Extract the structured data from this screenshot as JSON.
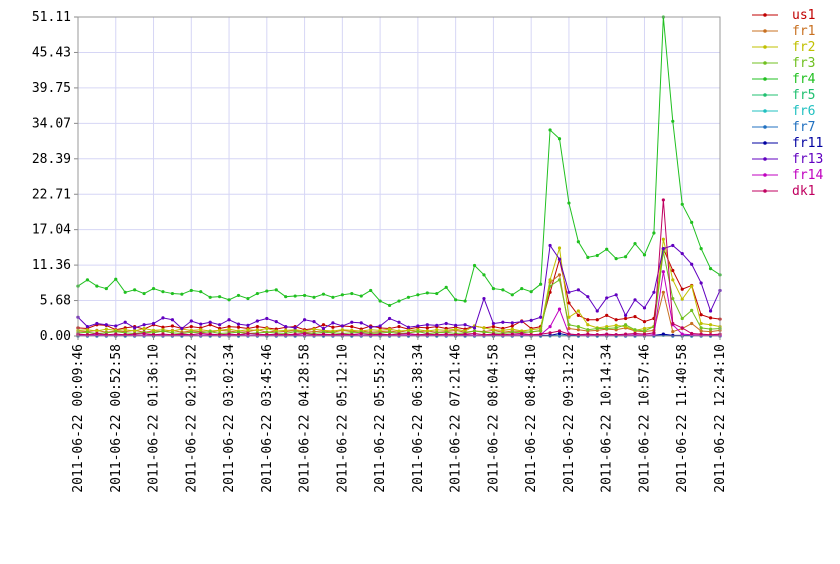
{
  "chart_data": {
    "type": "line",
    "grid": true,
    "legend_position": "right",
    "ylim": [
      0,
      51.11
    ],
    "yticks": [
      {
        "value": 0,
        "label": "0.00"
      },
      5.68,
      11.36,
      17.04,
      22.71,
      28.39,
      34.07,
      39.75,
      45.43,
      51.11
    ],
    "categories": [
      "2011-06-22 00:09:46",
      null,
      null,
      null,
      "2011-06-22 00:52:58",
      null,
      null,
      null,
      "2011-06-22 01:36:10",
      null,
      null,
      null,
      "2011-06-22 02:19:22",
      null,
      null,
      null,
      "2011-06-22 03:02:34",
      null,
      null,
      null,
      "2011-06-22 03:45:46",
      null,
      null,
      null,
      "2011-06-22 04:28:58",
      null,
      null,
      null,
      "2011-06-22 05:12:10",
      null,
      null,
      null,
      "2011-06-22 05:55:22",
      null,
      null,
      null,
      "2011-06-22 06:38:34",
      null,
      null,
      null,
      "2011-06-22 07:21:46",
      null,
      null,
      null,
      "2011-06-22 08:04:58",
      null,
      null,
      null,
      "2011-06-22 08:48:10",
      null,
      null,
      null,
      "2011-06-22 09:31:22",
      null,
      null,
      null,
      "2011-06-22 10:14:34",
      null,
      null,
      null,
      "2011-06-22 10:57:46",
      null,
      null,
      null,
      "2011-06-22 11:40:58",
      null,
      null,
      null,
      "2011-06-22 12:24:10"
    ],
    "series": [
      {
        "name": "us1",
        "color": "#c00000",
        "values": [
          1.3,
          1.2,
          1.8,
          1.7,
          1.0,
          1.3,
          1.5,
          1.1,
          1.8,
          1.4,
          1.6,
          1.2,
          1.5,
          1.3,
          1.8,
          1.2,
          1.5,
          1.4,
          1.2,
          1.5,
          1.3,
          1.1,
          1.4,
          1.5,
          1.0,
          1.2,
          1.8,
          1.4,
          1.6,
          1.5,
          1.1,
          1.6,
          1.3,
          1.2,
          1.5,
          1.1,
          1.4,
          1.3,
          1.5,
          1.2,
          1.4,
          1.1,
          1.6,
          1.3,
          1.5,
          1.2,
          1.6,
          2.4,
          1.2,
          1.5,
          7.0,
          12.3,
          5.3,
          3.3,
          2.6,
          2.6,
          3.3,
          2.6,
          2.8,
          3.1,
          2.3,
          2.8,
          14.0,
          10.5,
          7.5,
          8.1,
          3.4,
          2.9,
          2.7
        ]
      },
      {
        "name": "fr1",
        "color": "#c87020",
        "values": [
          0.8,
          0.7,
          0.9,
          0.6,
          0.8,
          0.7,
          0.9,
          0.6,
          0.8,
          0.7,
          0.9,
          0.6,
          0.8,
          0.7,
          0.6,
          0.9,
          0.8,
          0.6,
          0.7,
          1.0,
          0.6,
          0.8,
          0.7,
          0.9,
          0.6,
          0.7,
          0.8,
          0.6,
          0.9,
          0.7,
          0.8,
          0.6,
          0.7,
          0.8,
          0.6,
          0.9,
          0.7,
          0.8,
          0.6,
          0.7,
          0.9,
          0.6,
          0.8,
          0.7,
          0.9,
          0.6,
          0.8,
          0.7,
          0.6,
          0.9,
          8.6,
          9.8,
          1.2,
          1.0,
          0.8,
          0.9,
          1.1,
          1.0,
          1.3,
          0.8,
          0.7,
          0.9,
          7.0,
          0.7,
          1.2,
          2.0,
          0.8,
          0.7,
          0.9
        ]
      },
      {
        "name": "fr2",
        "color": "#c0c000",
        "values": [
          0.9,
          1.0,
          0.8,
          1.1,
          0.9,
          1.0,
          0.8,
          1.2,
          0.9,
          1.0,
          0.8,
          1.1,
          0.9,
          1.0,
          0.8,
          0.9,
          1.1,
          0.8,
          1.0,
          0.9,
          1.2,
          0.8,
          0.9,
          1.0,
          0.8,
          1.1,
          0.9,
          0.8,
          1.0,
          0.9,
          0.8,
          1.0,
          0.9,
          1.1,
          0.8,
          0.9,
          1.0,
          0.8,
          1.0,
          0.9,
          1.1,
          0.8,
          1.6,
          1.3,
          1.0,
          0.9,
          1.1,
          0.8,
          1.0,
          1.2,
          9.0,
          14.1,
          3.0,
          4.0,
          1.8,
          1.3,
          1.5,
          1.7,
          1.5,
          0.9,
          1.2,
          1.5,
          15.5,
          9.0,
          5.9,
          8.0,
          2.0,
          1.8,
          1.5
        ]
      },
      {
        "name": "fr3",
        "color": "#70c020",
        "values": [
          0.5,
          0.6,
          0.4,
          0.5,
          0.7,
          0.5,
          0.4,
          0.6,
          0.5,
          0.8,
          0.5,
          0.4,
          0.6,
          0.5,
          0.7,
          0.4,
          0.5,
          0.6,
          0.4,
          0.5,
          0.6,
          0.5,
          0.4,
          0.7,
          0.5,
          0.4,
          0.6,
          0.5,
          0.4,
          0.5,
          0.6,
          0.4,
          0.5,
          0.6,
          0.4,
          0.5,
          0.7,
          0.4,
          0.5,
          0.6,
          0.4,
          0.5,
          0.8,
          0.6,
          0.5,
          0.4,
          0.6,
          0.5,
          0.7,
          0.8,
          8.0,
          9.0,
          1.8,
          1.5,
          1.0,
          1.2,
          1.2,
          1.3,
          1.8,
          1.0,
          0.8,
          1.5,
          13.5,
          6.0,
          2.8,
          4.1,
          1.3,
          1.1,
          1.2
        ]
      },
      {
        "name": "fr4",
        "color": "#20c020",
        "values": [
          8.0,
          9.0,
          8.0,
          7.6,
          9.1,
          7.0,
          7.4,
          6.8,
          7.6,
          7.1,
          6.8,
          6.7,
          7.3,
          7.1,
          6.2,
          6.3,
          5.8,
          6.5,
          6.0,
          6.8,
          7.2,
          7.4,
          6.3,
          6.4,
          6.5,
          6.2,
          6.7,
          6.2,
          6.6,
          6.8,
          6.4,
          7.3,
          5.6,
          4.9,
          5.6,
          6.2,
          6.6,
          6.9,
          6.8,
          7.8,
          5.8,
          5.6,
          11.3,
          9.8,
          7.6,
          7.4,
          6.6,
          7.6,
          7.1,
          8.3,
          33.0,
          31.6,
          21.3,
          15.1,
          12.6,
          12.9,
          13.9,
          12.4,
          12.7,
          14.8,
          13.0,
          16.5,
          51.1,
          34.4,
          21.1,
          18.2,
          14.0,
          10.8,
          9.8
        ]
      },
      {
        "name": "fr5",
        "color": "#20c070",
        "values": [
          0,
          0,
          0,
          0,
          0,
          0,
          0,
          0,
          0,
          0,
          0,
          0,
          0,
          0,
          0,
          0,
          0,
          0,
          0,
          0,
          0,
          0,
          0,
          0,
          0,
          0,
          0,
          0,
          0,
          0,
          0,
          0,
          0,
          0,
          0,
          0,
          0,
          0,
          0,
          0,
          0,
          0,
          0,
          0,
          0,
          0,
          0,
          0,
          0,
          0,
          0.1,
          0.1,
          0,
          0,
          0,
          0,
          0,
          0,
          0,
          0,
          0,
          0,
          0.2,
          0,
          0,
          0,
          0,
          0,
          0
        ]
      },
      {
        "name": "fr6",
        "color": "#20c0c0",
        "values": [
          0,
          0,
          0,
          0,
          0,
          0,
          0,
          0,
          0,
          0,
          0,
          0,
          0,
          0,
          0,
          0,
          0,
          0,
          0,
          0,
          0,
          0,
          0,
          0,
          0,
          0,
          0,
          0,
          0,
          0,
          0,
          0,
          0,
          0,
          0,
          0,
          0,
          0,
          0,
          0,
          0,
          0,
          0,
          0,
          0,
          0,
          0,
          0,
          0,
          0,
          0,
          0.1,
          0,
          0,
          0,
          0,
          0,
          0,
          0,
          0,
          0,
          0,
          0.1,
          0,
          0,
          0,
          0,
          0,
          0
        ]
      },
      {
        "name": "fr7",
        "color": "#2070c0",
        "values": [
          0,
          0,
          0,
          0,
          0,
          0,
          0,
          0,
          0,
          0,
          0,
          0,
          0,
          0,
          0,
          0,
          0,
          0,
          0,
          0,
          0,
          0,
          0,
          0,
          0,
          0,
          0,
          0,
          0,
          0,
          0,
          0,
          0,
          0,
          0,
          0,
          0,
          0,
          0,
          0,
          0,
          0,
          0,
          0,
          0,
          0,
          0,
          0,
          0,
          0,
          0.1,
          0,
          0,
          0,
          0,
          0,
          0,
          0,
          0,
          0,
          0,
          0,
          0.2,
          0,
          0,
          0,
          0,
          0,
          0
        ]
      },
      {
        "name": "fr11",
        "color": "#0000a0",
        "values": [
          0.1,
          0.1,
          0.1,
          0.1,
          0.1,
          0.1,
          0.1,
          0.1,
          0.1,
          0.1,
          0.1,
          0.1,
          0.1,
          0.1,
          0.1,
          0.1,
          0.1,
          0.1,
          0.1,
          0.1,
          0.1,
          0.1,
          0.1,
          0.1,
          0.1,
          0.1,
          0.1,
          0.1,
          0.1,
          0.1,
          0.1,
          0.1,
          0.1,
          0.1,
          0.1,
          0.1,
          0.1,
          0.1,
          0.1,
          0.1,
          0.1,
          0.1,
          0.1,
          0.1,
          0.1,
          0.1,
          0.1,
          0.1,
          0.1,
          0.1,
          0.1,
          0.4,
          0.1,
          0.1,
          0.1,
          0.1,
          0.1,
          0.1,
          0.1,
          0.1,
          0.1,
          0.1,
          0.3,
          0.1,
          0.1,
          0.1,
          0.1,
          0.1,
          0.1
        ]
      },
      {
        "name": "fr13",
        "color": "#6000c0",
        "values": [
          3.0,
          1.5,
          2.0,
          1.8,
          1.6,
          2.2,
          1.3,
          1.8,
          2.0,
          2.9,
          2.6,
          1.2,
          2.4,
          1.9,
          2.2,
          1.8,
          2.6,
          1.9,
          1.7,
          2.4,
          2.8,
          2.3,
          1.5,
          1.3,
          2.6,
          2.3,
          1.2,
          2.1,
          1.6,
          2.2,
          2.1,
          1.4,
          1.6,
          2.8,
          2.2,
          1.4,
          1.6,
          1.8,
          1.7,
          2.0,
          1.7,
          1.8,
          1.3,
          6.0,
          2.0,
          2.2,
          2.1,
          2.3,
          2.5,
          3.0,
          14.5,
          12.3,
          7.0,
          7.4,
          6.3,
          4.0,
          6.1,
          6.6,
          3.3,
          5.8,
          4.5,
          7.0,
          14.0,
          14.5,
          13.2,
          11.5,
          8.5,
          4.0,
          7.3
        ]
      },
      {
        "name": "fr14",
        "color": "#c000c0",
        "values": [
          0.2,
          0.1,
          0.2,
          0.1,
          0.1,
          0.2,
          0.1,
          0.1,
          0.2,
          0.1,
          0.1,
          0.2,
          0.1,
          0.1,
          0.2,
          0.1,
          0.1,
          0.2,
          0.1,
          0.1,
          0.2,
          0.1,
          0.1,
          0.2,
          0.1,
          0.1,
          0.2,
          0.1,
          0.1,
          0.2,
          0.1,
          0.1,
          0.2,
          0.1,
          0.1,
          0.2,
          0.1,
          0.1,
          0.2,
          0.1,
          0.1,
          0.2,
          0.1,
          0.1,
          0.2,
          0.1,
          0.1,
          0.2,
          0.1,
          0.2,
          1.5,
          4.3,
          0.3,
          0.2,
          0.1,
          0.2,
          0.1,
          0.2,
          0.1,
          0.2,
          0.1,
          0.2,
          10.3,
          1.8,
          0.3,
          0.2,
          0.1,
          0.2,
          0.1
        ]
      },
      {
        "name": "dk1",
        "color": "#c00060",
        "values": [
          0.3,
          0.2,
          0.4,
          0.2,
          0.3,
          0.2,
          0.3,
          0.4,
          0.2,
          0.3,
          0.2,
          0.3,
          0.2,
          0.4,
          0.3,
          0.2,
          0.3,
          0.2,
          0.4,
          0.3,
          0.2,
          0.3,
          0.2,
          0.3,
          0.4,
          0.2,
          0.3,
          0.2,
          0.3,
          0.2,
          0.4,
          0.2,
          0.3,
          0.2,
          0.3,
          0.4,
          0.2,
          0.3,
          0.2,
          0.3,
          0.2,
          0.3,
          0.4,
          0.2,
          0.3,
          0.2,
          0.3,
          0.4,
          0.2,
          0.3,
          0.5,
          0.8,
          0.3,
          0.2,
          0.3,
          0.2,
          0.3,
          0.2,
          0.3,
          0.4,
          0.3,
          0.5,
          21.8,
          2.0,
          1.3,
          0.4,
          0.3,
          0.2,
          0.3
        ]
      }
    ]
  }
}
